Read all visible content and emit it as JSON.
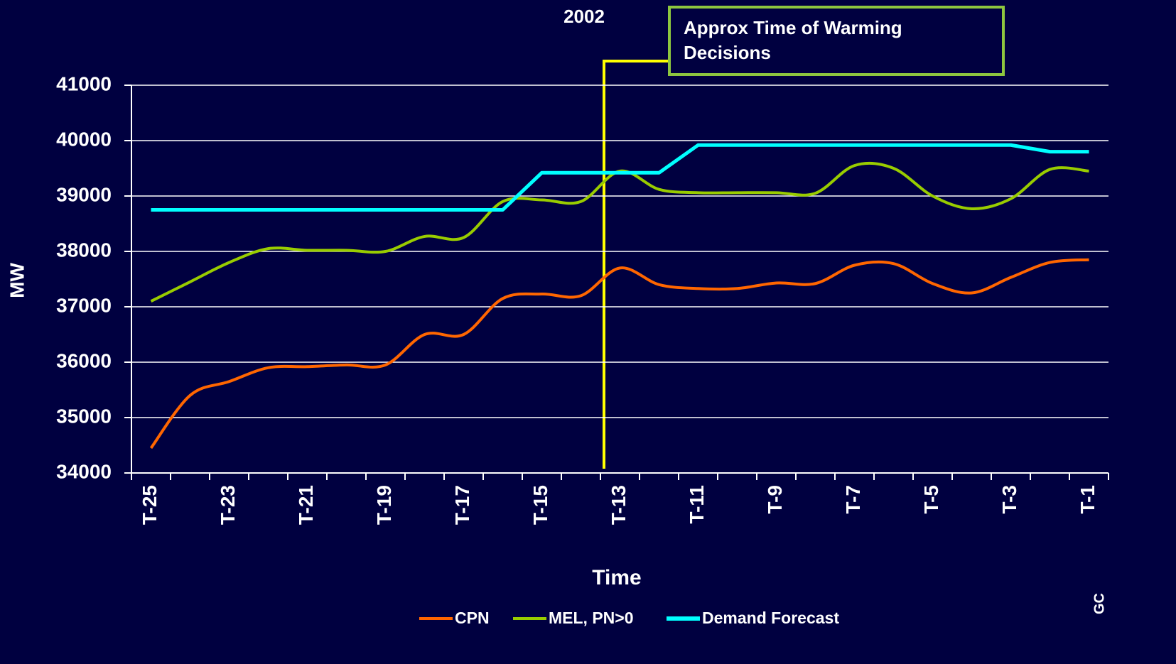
{
  "chart_data": {
    "type": "line",
    "title": "2002",
    "annotation": "Approx Time of Warming Decisions",
    "footer": "GC",
    "x_label": "Time",
    "y_label": "MW",
    "categories": [
      "T-25",
      null,
      "T-23",
      null,
      "T-21",
      null,
      "T-19",
      null,
      "T-17",
      null,
      "T-15",
      null,
      "T-13",
      null,
      "T-11",
      null,
      "T-9",
      null,
      "T-7",
      null,
      "T-5",
      null,
      "T-3",
      null,
      "T-1"
    ],
    "ylim": [
      34000,
      41000
    ],
    "yticks": [
      34000,
      35000,
      36000,
      37000,
      38000,
      39000,
      40000,
      41000
    ],
    "grid": true,
    "legend": "bottom",
    "series": [
      {
        "name": "CPN",
        "color": "#ff6600",
        "smooth": true,
        "values": [
          34450,
          35400,
          35650,
          35900,
          35920,
          35950,
          35950,
          36500,
          36500,
          37150,
          37230,
          37200,
          37700,
          37400,
          37330,
          37330,
          37430,
          37420,
          37750,
          37780,
          37420,
          37250,
          37530,
          37800,
          37850
        ]
      },
      {
        "name": "MEL, PN>0",
        "color": "#99cc00",
        "smooth": true,
        "values": [
          37100,
          37450,
          37800,
          38050,
          38020,
          38020,
          38000,
          38270,
          38250,
          38900,
          38930,
          38900,
          39450,
          39120,
          39060,
          39060,
          39060,
          39050,
          39550,
          39500,
          39000,
          38770,
          38950,
          39480,
          39450
        ]
      },
      {
        "name": "Demand Forecast",
        "color": "#00ffff",
        "smooth": false,
        "values": [
          38750,
          38750,
          38750,
          38750,
          38750,
          38750,
          38750,
          38750,
          38750,
          38750,
          39420,
          39420,
          39420,
          39420,
          39920,
          39920,
          39920,
          39920,
          39920,
          39920,
          39920,
          39920,
          39920,
          39800,
          39800
        ]
      }
    ]
  }
}
